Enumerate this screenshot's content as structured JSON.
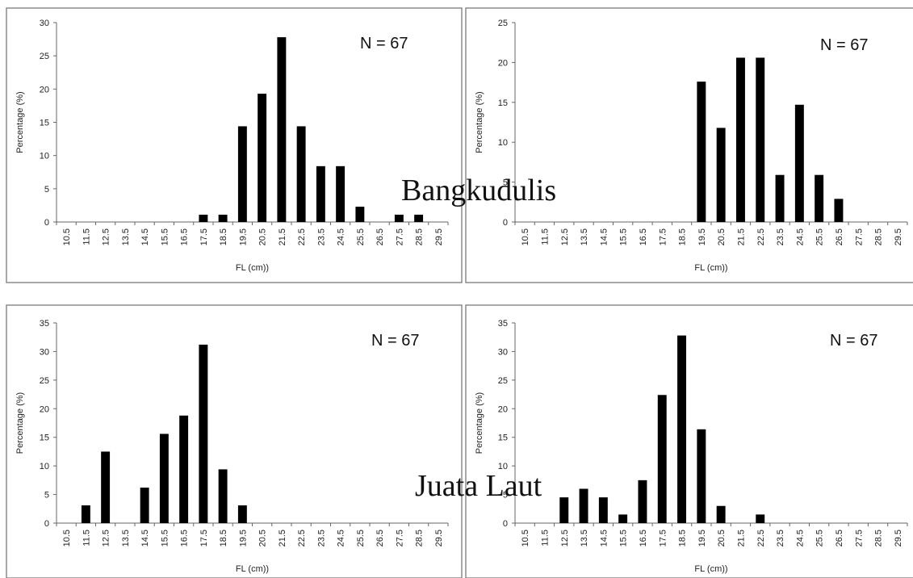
{
  "captions": {
    "top": "Bangkudulis",
    "bottom": "Juata Laut"
  },
  "chart_data": [
    {
      "type": "bar",
      "xlabel": "FL (cm))",
      "ylabel": "Percentage (%)",
      "annotation": "N = 67",
      "ylim": [
        0,
        30
      ],
      "yticks": [
        0,
        5,
        10,
        15,
        20,
        25,
        30
      ],
      "categories": [
        "10.5",
        "11.5",
        "12.5",
        "13.5",
        "14.5",
        "15.5",
        "16.5",
        "17.5",
        "18.5",
        "19.5",
        "20.5",
        "21.5",
        "22.5",
        "23.5",
        "24.5",
        "25.5",
        "26.5",
        "27.5",
        "28.5",
        "29.5"
      ],
      "values": [
        0,
        0,
        0,
        0,
        0,
        0,
        0,
        1.1,
        1.1,
        14.4,
        19.3,
        27.8,
        14.4,
        8.4,
        8.4,
        2.3,
        0,
        1.1,
        1.1,
        0
      ]
    },
    {
      "type": "bar",
      "xlabel": "FL (cm))",
      "ylabel": "Percentage (%)",
      "annotation": "N = 67",
      "ylim": [
        0,
        25
      ],
      "yticks": [
        0,
        5,
        10,
        15,
        20,
        25
      ],
      "categories": [
        "10.5",
        "11.5",
        "12.5",
        "13.5",
        "14.5",
        "15.5",
        "16.5",
        "17.5",
        "18.5",
        "19.5",
        "20.5",
        "21.5",
        "22.5",
        "23.5",
        "24.5",
        "25.5",
        "26.5",
        "27.5",
        "28.5",
        "29.5"
      ],
      "values": [
        0,
        0,
        0,
        0,
        0,
        0,
        0,
        0,
        0,
        17.6,
        11.8,
        20.6,
        20.6,
        5.9,
        14.7,
        5.9,
        2.9,
        0,
        0,
        0
      ]
    },
    {
      "type": "bar",
      "xlabel": "FL (cm))",
      "ylabel": "Percentage (%)",
      "annotation": "N = 67",
      "ylim": [
        0,
        35
      ],
      "yticks": [
        0,
        5,
        10,
        15,
        20,
        25,
        30,
        35
      ],
      "categories": [
        "10.5",
        "11.5",
        "12.5",
        "13.5",
        "14.5",
        "15.5",
        "16.5",
        "17.5",
        "18.5",
        "19.5",
        "20.5",
        "21.5",
        "22.5",
        "23.5",
        "24.5",
        "25.5",
        "26.5",
        "27.5",
        "28.5",
        "29.5"
      ],
      "values": [
        0,
        3.1,
        12.5,
        0,
        6.2,
        15.6,
        18.8,
        31.2,
        9.4,
        3.1,
        0,
        0,
        0,
        0,
        0,
        0,
        0,
        0,
        0,
        0
      ]
    },
    {
      "type": "bar",
      "xlabel": "FL (cm))",
      "ylabel": "Percentage (%)",
      "annotation": "N = 67",
      "ylim": [
        0,
        35
      ],
      "yticks": [
        0,
        5,
        10,
        15,
        20,
        25,
        30,
        35
      ],
      "categories": [
        "10.5",
        "11.5",
        "12.5",
        "13.5",
        "14.5",
        "15.5",
        "16.5",
        "17.5",
        "18.5",
        "19.5",
        "20.5",
        "21.5",
        "22.5",
        "23.5",
        "24.5",
        "25.5",
        "26.5",
        "27.5",
        "28.5",
        "29.5"
      ],
      "values": [
        0,
        0,
        4.5,
        6.0,
        4.5,
        1.5,
        7.5,
        22.4,
        32.8,
        16.4,
        3.0,
        0,
        1.5,
        0,
        0,
        0,
        0,
        0,
        0,
        0
      ]
    }
  ]
}
